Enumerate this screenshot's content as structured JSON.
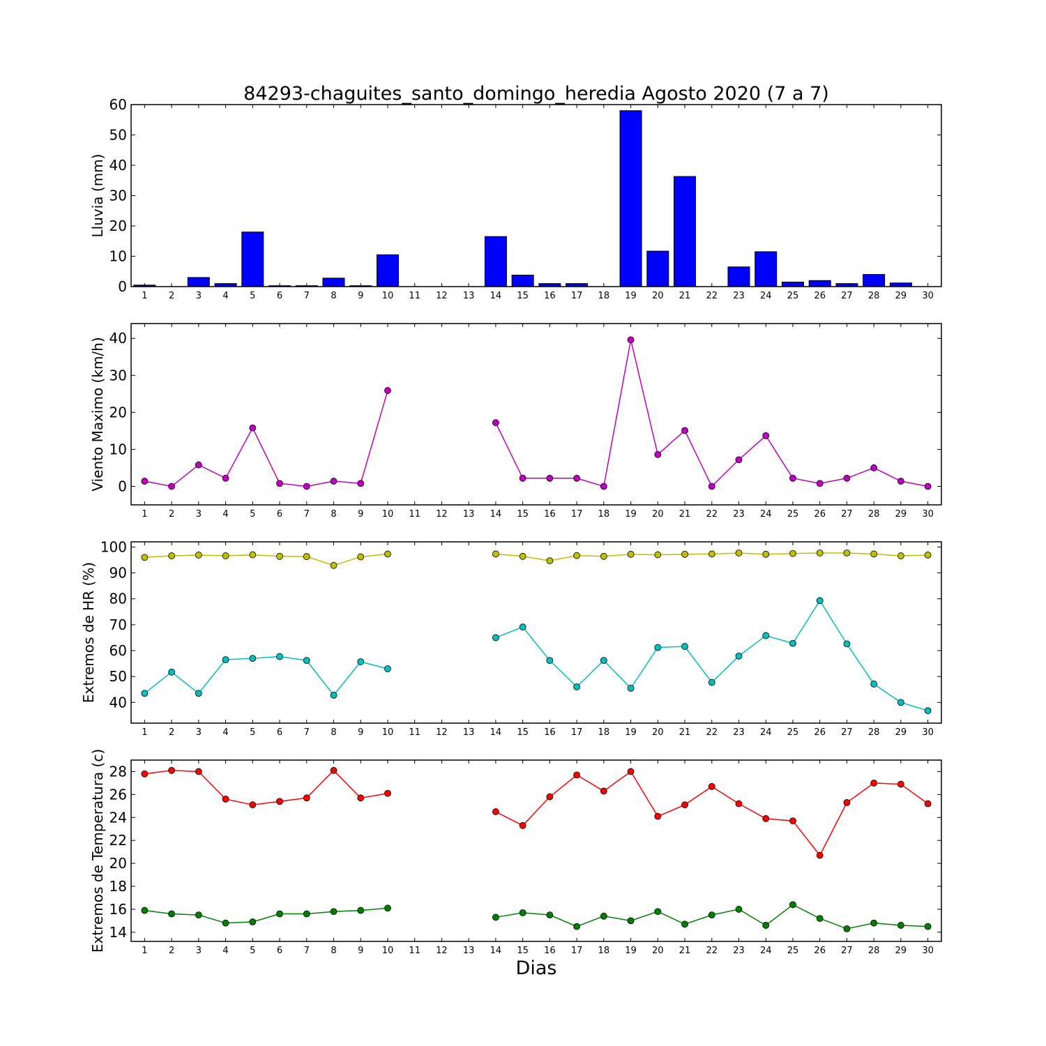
{
  "title": "84293-chaguites_santo_domingo_heredia Agosto 2020  (7 a 7)",
  "xlabel": "Dias",
  "chart_data": [
    {
      "type": "bar",
      "ylabel": "Lluvia (mm)",
      "ylim": [
        0,
        60
      ],
      "yticks": [
        0,
        10,
        20,
        30,
        40,
        50,
        60
      ],
      "x": [
        1,
        2,
        3,
        4,
        5,
        6,
        7,
        8,
        9,
        10,
        11,
        12,
        13,
        14,
        15,
        16,
        17,
        18,
        19,
        20,
        21,
        22,
        23,
        24,
        25,
        26,
        27,
        28,
        29,
        30
      ],
      "series": [
        {
          "color": "#0000ff",
          "values": [
            0.5,
            0,
            3,
            1,
            18,
            0.3,
            0.3,
            2.8,
            0.3,
            10.5,
            null,
            null,
            null,
            16.5,
            3.8,
            1,
            1,
            0,
            58,
            11.7,
            36.3,
            0,
            6.5,
            11.5,
            1.5,
            2,
            1,
            4,
            1.2,
            0
          ]
        }
      ]
    },
    {
      "type": "line",
      "ylabel": "Viento Maximo (km/h)",
      "ylim": [
        -5,
        44
      ],
      "yticks": [
        0,
        10,
        20,
        30,
        40
      ],
      "x": [
        1,
        2,
        3,
        4,
        5,
        6,
        7,
        8,
        9,
        10,
        11,
        12,
        13,
        14,
        15,
        16,
        17,
        18,
        19,
        20,
        21,
        22,
        23,
        24,
        25,
        26,
        27,
        28,
        29,
        30
      ],
      "series": [
        {
          "color": "#bf00bf",
          "values": [
            1.4,
            0,
            5.8,
            2.2,
            15.8,
            0.8,
            0,
            1.4,
            0.8,
            25.9,
            null,
            null,
            null,
            17.2,
            2.2,
            2.2,
            2.2,
            0,
            39.6,
            8.6,
            15.1,
            0,
            7.2,
            13.7,
            2.2,
            0.8,
            2.2,
            5,
            1.4,
            0
          ]
        }
      ]
    },
    {
      "type": "line",
      "ylabel": "Extremos de HR (%)",
      "ylim": [
        32,
        102
      ],
      "yticks": [
        40,
        50,
        60,
        70,
        80,
        90,
        100
      ],
      "x": [
        1,
        2,
        3,
        4,
        5,
        6,
        7,
        8,
        9,
        10,
        11,
        12,
        13,
        14,
        15,
        16,
        17,
        18,
        19,
        20,
        21,
        22,
        23,
        24,
        25,
        26,
        27,
        28,
        29,
        30
      ],
      "series": [
        {
          "color": "#bfbf00",
          "values": [
            96,
            96.6,
            96.9,
            96.6,
            97,
            96.4,
            96.3,
            92.9,
            96.2,
            97.3,
            null,
            null,
            null,
            97.3,
            96.4,
            94.7,
            96.7,
            96.4,
            97.2,
            97,
            97.2,
            97.3,
            97.7,
            97.2,
            97.5,
            97.7,
            97.7,
            97.3,
            96.6,
            96.9
          ]
        },
        {
          "color": "#00bfbf",
          "values": [
            43.5,
            51.7,
            43.5,
            56.5,
            57,
            57.7,
            56.2,
            42.8,
            55.7,
            53,
            null,
            null,
            null,
            65,
            69.1,
            56.2,
            46,
            56.2,
            45.5,
            61.2,
            61.6,
            47.7,
            57.9,
            65.8,
            62.8,
            79.3,
            62.6,
            47.1,
            40,
            36.8
          ]
        }
      ]
    },
    {
      "type": "line",
      "ylabel": "Extremos de Temperatura (c)",
      "ylim": [
        13.2,
        29
      ],
      "yticks": [
        14,
        16,
        18,
        20,
        22,
        24,
        26,
        28
      ],
      "x": [
        1,
        2,
        3,
        4,
        5,
        6,
        7,
        8,
        9,
        10,
        11,
        12,
        13,
        14,
        15,
        16,
        17,
        18,
        19,
        20,
        21,
        22,
        23,
        24,
        25,
        26,
        27,
        28,
        29,
        30
      ],
      "series": [
        {
          "color": "#ff0000",
          "values": [
            27.8,
            28.1,
            28,
            25.6,
            25.1,
            25.4,
            25.7,
            28.1,
            25.7,
            26.1,
            null,
            null,
            null,
            24.5,
            23.3,
            25.8,
            27.7,
            26.3,
            28,
            24.1,
            25.1,
            26.7,
            25.2,
            23.9,
            23.7,
            20.7,
            25.3,
            27,
            26.9,
            25.2
          ]
        },
        {
          "color": "#008000",
          "values": [
            15.9,
            15.6,
            15.5,
            14.8,
            14.9,
            15.6,
            15.6,
            15.8,
            15.9,
            16.1,
            null,
            null,
            null,
            15.3,
            15.7,
            15.5,
            14.5,
            15.4,
            15,
            15.8,
            14.7,
            15.5,
            16,
            14.6,
            16.4,
            15.2,
            14.3,
            14.8,
            14.6,
            14.5
          ]
        }
      ]
    }
  ]
}
